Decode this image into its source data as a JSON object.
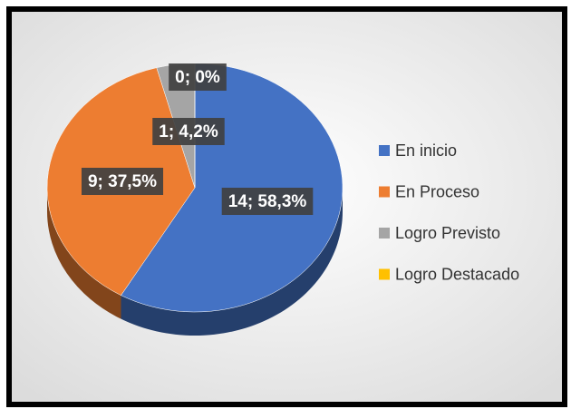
{
  "chart_data": {
    "type": "pie",
    "categories": [
      "En inicio",
      "En Proceso",
      "Logro Previsto",
      "Logro Destacado"
    ],
    "values": [
      14,
      9,
      1,
      0
    ],
    "value_labels": [
      "14; 58,3%",
      "9; 37,5%",
      "1; 4,2%",
      "0; 0%"
    ],
    "colors": [
      "#4472c4",
      "#ed7d31",
      "#a5a5a5",
      "#ffc000"
    ],
    "legend": "right"
  }
}
